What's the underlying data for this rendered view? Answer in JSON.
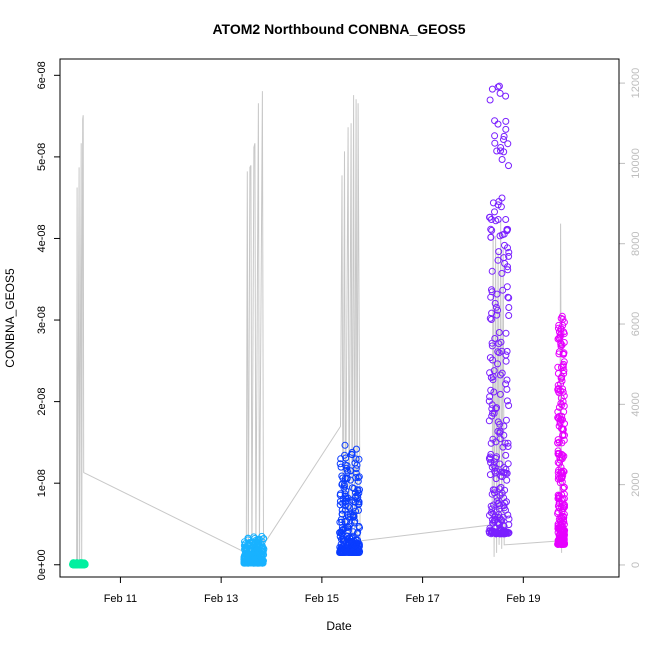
{
  "chart_data": {
    "type": "scatter",
    "title": "ATOM2 Northbound CONBNA_GEOS5",
    "xlabel": "Date",
    "ylabel": "CONBNA_GEOS5",
    "x_ticks": [
      "Feb 11",
      "Feb 13",
      "Feb 15",
      "Feb 17",
      "Feb 19"
    ],
    "x_tick_values": [
      11,
      13,
      15,
      17,
      19
    ],
    "xlim": [
      9.8,
      20.9
    ],
    "y_ticks": [
      "0e+00",
      "1e-08",
      "2e-08",
      "3e-08",
      "4e-08",
      "5e-08",
      "6e-08"
    ],
    "y_tick_values": [
      0,
      1e-08,
      2e-08,
      3e-08,
      4e-08,
      5e-08,
      6e-08
    ],
    "ylim": [
      -1.5e-09,
      6.2e-08
    ],
    "y2_ticks": [
      "0",
      "2000",
      "4000",
      "6000",
      "8000",
      "10000",
      "12000"
    ],
    "y2_tick_values": [
      0,
      2000,
      4000,
      6000,
      8000,
      10000,
      12000
    ],
    "y2lim": [
      -300,
      12600
    ],
    "altitude_color": "#c8c8c8",
    "altitude_line": [
      [
        10.13,
        10
      ],
      [
        10.14,
        9400
      ],
      [
        10.15,
        20
      ],
      [
        10.18,
        9900
      ],
      [
        10.19,
        30
      ],
      [
        10.22,
        10500
      ],
      [
        10.23,
        20
      ],
      [
        10.25,
        11100
      ],
      [
        10.26,
        11200
      ],
      [
        10.27,
        2300
      ],
      [
        13.5,
        300
      ],
      [
        13.52,
        9800
      ],
      [
        13.54,
        200
      ],
      [
        13.57,
        9900
      ],
      [
        13.59,
        9950
      ],
      [
        13.61,
        100
      ],
      [
        13.65,
        10400
      ],
      [
        13.67,
        10500
      ],
      [
        13.69,
        300
      ],
      [
        13.74,
        11500
      ],
      [
        13.76,
        400
      ],
      [
        13.82,
        11800
      ],
      [
        13.84,
        500
      ],
      [
        15.37,
        3450
      ],
      [
        15.4,
        9700
      ],
      [
        15.42,
        500
      ],
      [
        15.45,
        10300
      ],
      [
        15.47,
        600
      ],
      [
        15.52,
        10900
      ],
      [
        15.54,
        800
      ],
      [
        15.58,
        11000
      ],
      [
        15.6,
        700
      ],
      [
        15.63,
        11700
      ],
      [
        15.65,
        900
      ],
      [
        15.68,
        11600
      ],
      [
        15.7,
        700
      ],
      [
        15.72,
        11500
      ],
      [
        15.76,
        600
      ],
      [
        18.38,
        1000
      ],
      [
        18.4,
        8400
      ],
      [
        18.42,
        200
      ],
      [
        18.45,
        8200
      ],
      [
        18.47,
        300
      ],
      [
        18.5,
        7800
      ],
      [
        18.52,
        500
      ],
      [
        18.55,
        8600
      ],
      [
        18.57,
        400
      ],
      [
        18.6,
        7900
      ],
      [
        18.62,
        500
      ],
      [
        19.72,
        600
      ],
      [
        19.74,
        8500
      ],
      [
        19.76,
        300
      ]
    ],
    "series": [
      {
        "day": "Feb 10",
        "color": "#00f0a0",
        "x_range": [
          10.05,
          10.3
        ],
        "y_range": [
          0,
          2.5e-10
        ]
      },
      {
        "day": "Feb 13",
        "color": "#19b2ff",
        "x_range": [
          13.45,
          13.85
        ],
        "y_range": [
          2e-10,
          3.5e-09
        ]
      },
      {
        "day": "Feb 15",
        "color": "#0a3cff",
        "x_range": [
          15.35,
          15.75
        ],
        "y_range": [
          1.5e-09,
          1.48e-08
        ]
      },
      {
        "day": "Feb 18",
        "color": "#7a20ff",
        "x_range": [
          18.32,
          18.72
        ],
        "y_range": [
          3.8e-09,
          5.9e-08
        ]
      },
      {
        "day": "Feb 19",
        "color": "#e600ff",
        "x_range": [
          19.68,
          19.82
        ],
        "y_range": [
          2.5e-09,
          3.05e-08
        ]
      }
    ]
  }
}
